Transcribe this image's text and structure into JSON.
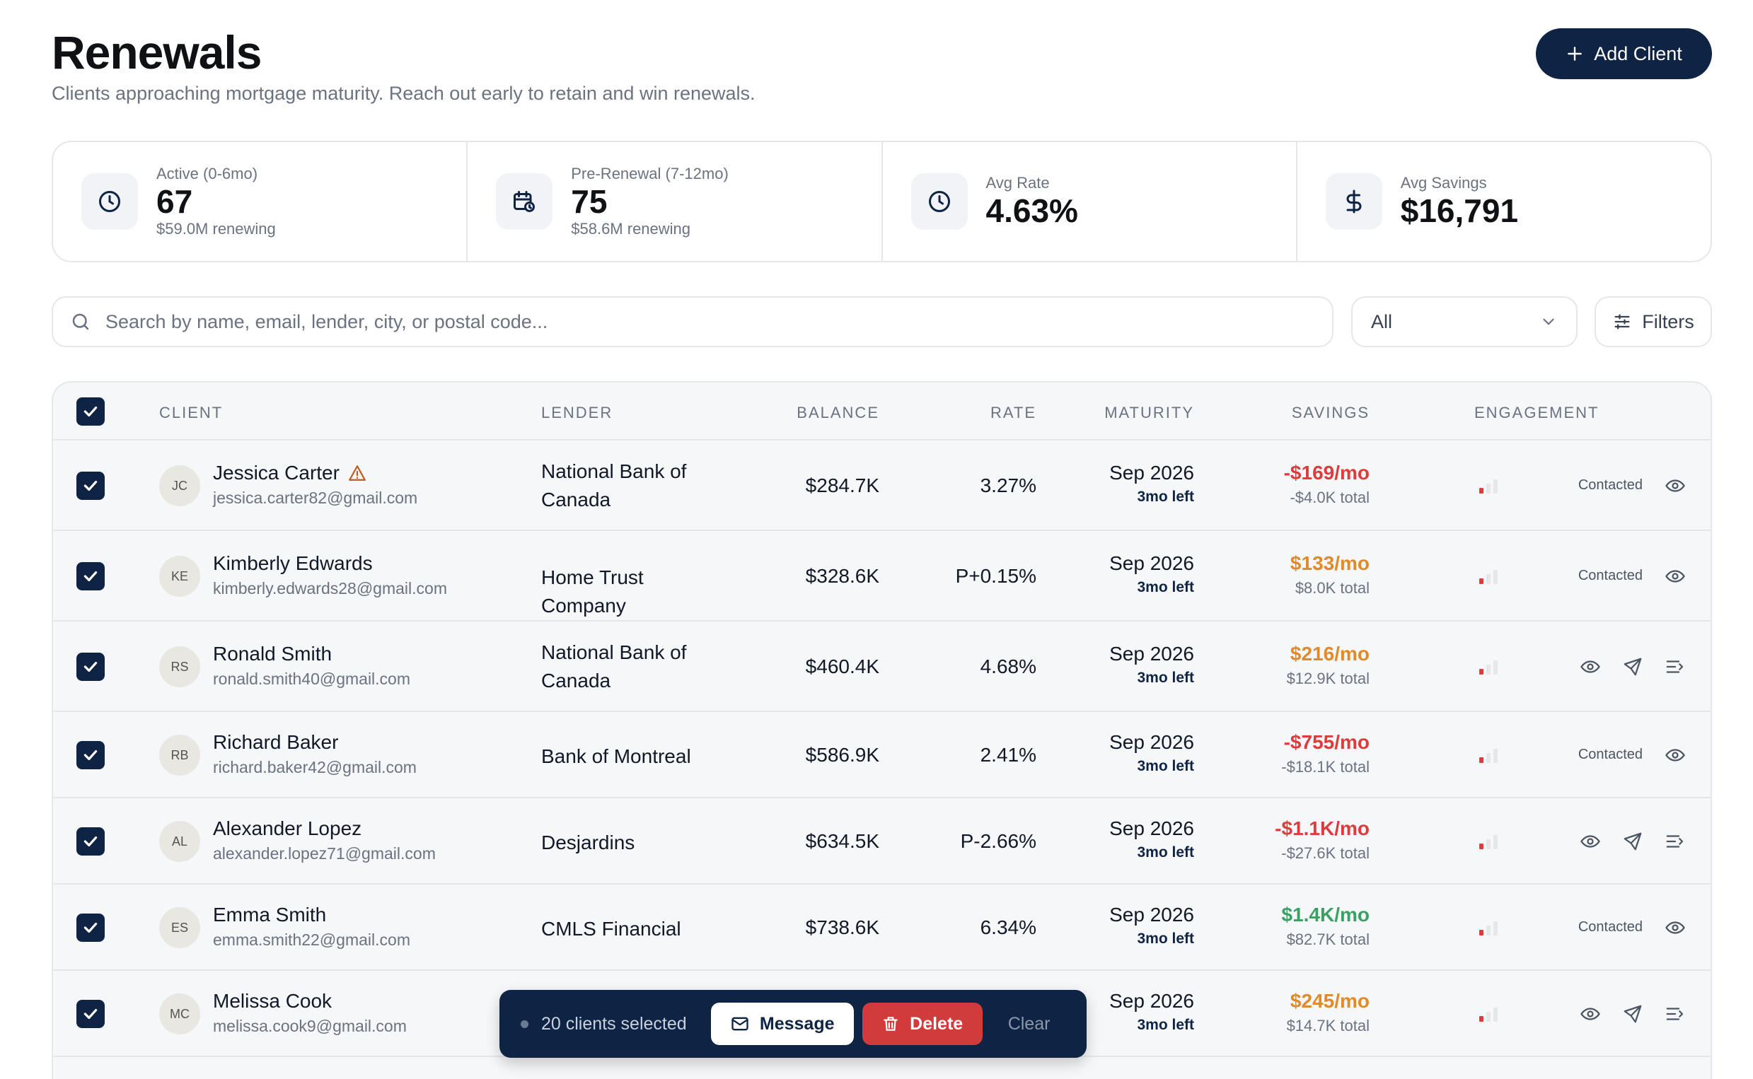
{
  "header": {
    "title": "Renewals",
    "subtitle": "Clients approaching mortgage maturity. Reach out early to retain and win renewals.",
    "add_button": "Add Client"
  },
  "stats": [
    {
      "label": "Active (0-6mo)",
      "value": "67",
      "sub": "$59.0M renewing",
      "icon": "clock-icon"
    },
    {
      "label": "Pre-Renewal (7-12mo)",
      "value": "75",
      "sub": "$58.6M renewing",
      "icon": "calendar-clock-icon"
    },
    {
      "label": "Avg Rate",
      "value": "4.63%",
      "sub": "",
      "icon": "clock-icon"
    },
    {
      "label": "Avg Savings",
      "value": "$16,791",
      "sub": "",
      "icon": "dollar-icon"
    }
  ],
  "toolbar": {
    "search_placeholder": "Search by name, email, lender, city, or postal code...",
    "select_value": "All",
    "filters_label": "Filters"
  },
  "table": {
    "columns": [
      "CLIENT",
      "LENDER",
      "BALANCE",
      "RATE",
      "MATURITY",
      "SAVINGS",
      "ENGAGEMENT"
    ],
    "rows": [
      {
        "initials": "JC",
        "name": "Jessica Carter",
        "email": "jessica.carter82@gmail.com",
        "lender": "National Bank of Canada",
        "balance": "$284.7K",
        "rate": "3.27%",
        "maturity": "Sep 2026",
        "left": "3mo left",
        "savings": "-$169/mo",
        "savings_total": "-$4.0K total",
        "savings_tone": "neg",
        "status": "Contacted",
        "warning": true
      },
      {
        "initials": "KE",
        "name": "Kimberly Edwards",
        "email": "kimberly.edwards28@gmail.com",
        "lender": "Home Trust Company",
        "balance": "$328.6K",
        "rate": "P+0.15%",
        "maturity": "Sep 2026",
        "left": "3mo left",
        "savings": "$133/mo",
        "savings_total": "$8.0K total",
        "savings_tone": "pos-o",
        "status": "Contacted",
        "warning": false
      },
      {
        "initials": "RS",
        "name": "Ronald Smith",
        "email": "ronald.smith40@gmail.com",
        "lender": "National Bank of Canada",
        "balance": "$460.4K",
        "rate": "4.68%",
        "maturity": "Sep 2026",
        "left": "3mo left",
        "savings": "$216/mo",
        "savings_total": "$12.9K total",
        "savings_tone": "pos-o",
        "status": "",
        "warning": false
      },
      {
        "initials": "RB",
        "name": "Richard Baker",
        "email": "richard.baker42@gmail.com",
        "lender": "Bank of Montreal",
        "balance": "$586.9K",
        "rate": "2.41%",
        "maturity": "Sep 2026",
        "left": "3mo left",
        "savings": "-$755/mo",
        "savings_total": "-$18.1K total",
        "savings_tone": "neg",
        "status": "Contacted",
        "warning": false
      },
      {
        "initials": "AL",
        "name": "Alexander Lopez",
        "email": "alexander.lopez71@gmail.com",
        "lender": "Desjardins",
        "balance": "$634.5K",
        "rate": "P-2.66%",
        "maturity": "Sep 2026",
        "left": "3mo left",
        "savings": "-$1.1K/mo",
        "savings_total": "-$27.6K total",
        "savings_tone": "neg",
        "status": "",
        "warning": false
      },
      {
        "initials": "ES",
        "name": "Emma Smith",
        "email": "emma.smith22@gmail.com",
        "lender": "CMLS Financial",
        "balance": "$738.6K",
        "rate": "6.34%",
        "maturity": "Sep 2026",
        "left": "3mo left",
        "savings": "$1.4K/mo",
        "savings_total": "$82.7K total",
        "savings_tone": "pos-g",
        "status": "Contacted",
        "warning": false
      },
      {
        "initials": "MC",
        "name": "Melissa Cook",
        "email": "melissa.cook9@gmail.com",
        "lender": "",
        "balance": "",
        "rate": "",
        "maturity": "Sep 2026",
        "left": "3mo left",
        "savings": "$245/mo",
        "savings_total": "$14.7K total",
        "savings_tone": "pos-o",
        "status": "",
        "warning": false
      }
    ]
  },
  "selection_bar": {
    "count_text": "20 clients selected",
    "message_label": "Message",
    "delete_label": "Delete",
    "clear_label": "Clear"
  },
  "colors": {
    "primary": "#0f2444",
    "danger": "#d23b3b",
    "negative": "#dc3c3c",
    "positive_orange": "#e08a2a",
    "positive_green": "#3aa063"
  }
}
